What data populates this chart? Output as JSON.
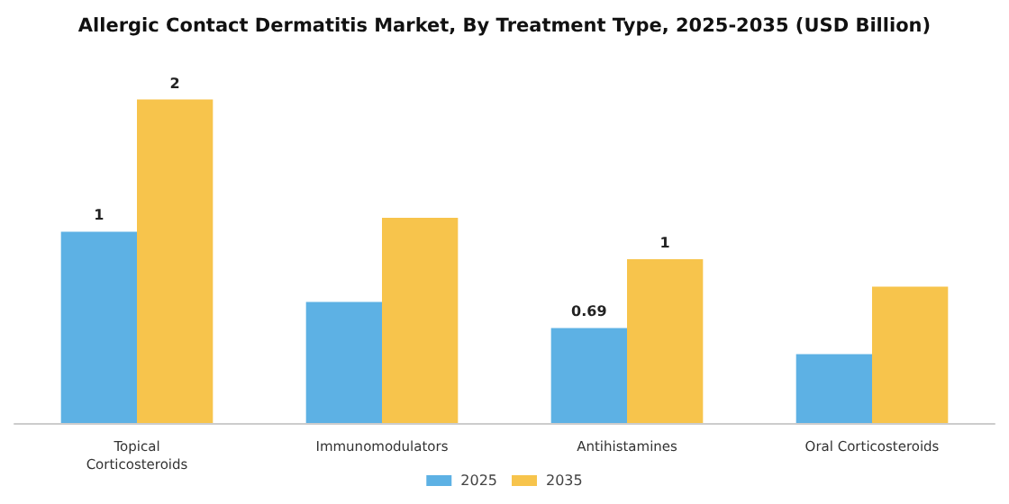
{
  "chart_data": {
    "type": "bar",
    "title": "Allergic Contact Dermatitis Market, By Treatment Type, 2025-2035 (USD Billion)",
    "categories": [
      "Topical\nCorticosteroids",
      "Immunomodulators",
      "Antihistamines",
      "Oral Corticosteroids"
    ],
    "series": [
      {
        "name": "2025",
        "color": "#5db1e4",
        "values": [
          1.39,
          0.88,
          0.69,
          0.5
        ],
        "value_labels": [
          "1",
          null,
          "0.69",
          null
        ]
      },
      {
        "name": "2035",
        "color": "#f7c44c",
        "values": [
          2.35,
          1.49,
          1.19,
          0.99
        ],
        "value_labels": [
          "2",
          null,
          "1",
          null
        ]
      }
    ],
    "legend": "bottom"
  }
}
